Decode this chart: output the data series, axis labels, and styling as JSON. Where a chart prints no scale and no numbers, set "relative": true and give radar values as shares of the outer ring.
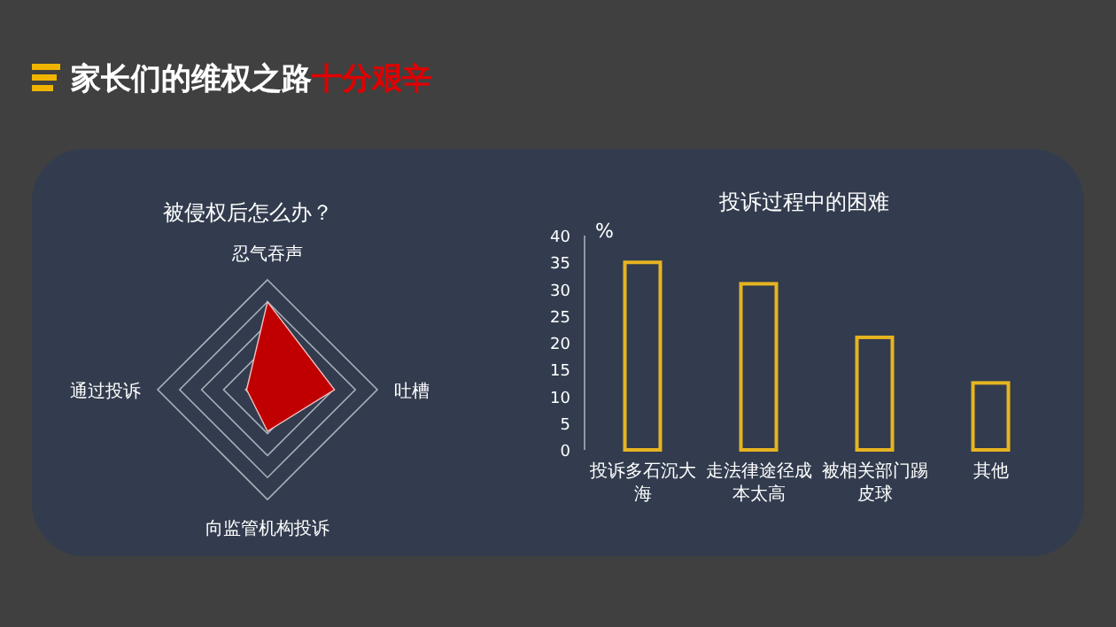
{
  "chart_data": [
    {
      "type": "radar",
      "title": "被侵权后怎么办？",
      "annotations": [
        "家长们的维权之路",
        "十分艰辛"
      ],
      "relative": true,
      "categories": [
        "忍气吞声",
        "吐槽",
        "向监管机构投诉",
        "通过投诉"
      ],
      "series": [
        {
          "color": "#c00000",
          "values": [
            0.8,
            0.61,
            0.38,
            0.19
          ]
        }
      ]
    },
    {
      "type": "bar",
      "title": "投诉过程中的困难",
      "ylabel": "%",
      "categories": [
        "投诉多石沉大海",
        "走法律途径成本太高",
        "被相关部门踢皮球",
        "其他"
      ],
      "values": [
        35,
        31,
        21,
        12.5
      ],
      "color": "#e6b422",
      "ylim": [
        0,
        40
      ],
      "yticks": [
        0,
        5,
        10,
        15,
        20,
        25,
        30,
        35,
        40
      ],
      "grid": false
    }
  ]
}
